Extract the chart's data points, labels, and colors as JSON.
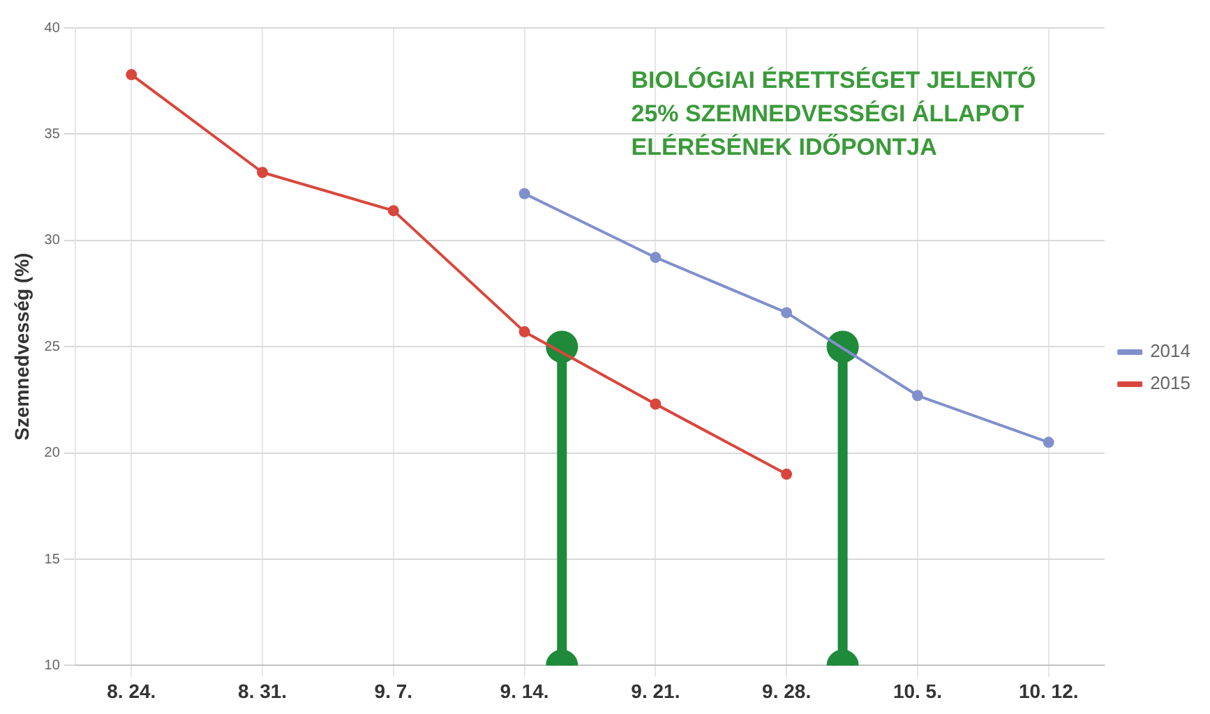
{
  "chart_data": {
    "type": "line",
    "ylabel": "Szemnedvesség (%)",
    "xlim": [
      "--08-21",
      "--10-15"
    ],
    "xticks": [
      {
        "value": "--08-24",
        "label": "8. 24."
      },
      {
        "value": "--08-31",
        "label": "8. 31."
      },
      {
        "value": "--09-07",
        "label": "9. 7."
      },
      {
        "value": "--09-14",
        "label": "9. 14."
      },
      {
        "value": "--09-21",
        "label": "9. 21."
      },
      {
        "value": "--09-28",
        "label": "9. 28."
      },
      {
        "value": "--10-05",
        "label": "10. 5."
      },
      {
        "value": "--10-12",
        "label": "10. 12."
      }
    ],
    "ylim": [
      10,
      40
    ],
    "yticks": [
      10,
      15,
      20,
      25,
      30,
      35,
      40
    ],
    "series": [
      {
        "name": "2014",
        "color": "#8090cc",
        "x": [
          "--09-14",
          "--09-21",
          "--09-28",
          "--10-05",
          "--10-12"
        ],
        "values": [
          32.2,
          29.2,
          26.6,
          22.7,
          20.5
        ]
      },
      {
        "name": "2015",
        "color": "#d9463c",
        "x": [
          "--08-24",
          "--08-31",
          "--09-07",
          "--09-14",
          "--09-21",
          "--09-28"
        ],
        "values": [
          37.8,
          33.2,
          31.4,
          25.7,
          22.3,
          19.0
        ]
      },
      {
        "color": "#1e8a3a",
        "x": [
          "--09-16",
          "--09-16"
        ],
        "values": [
          10,
          25
        ]
      },
      {
        "color": "#1e8a3a",
        "x": [
          "--10-01",
          "--10-01"
        ],
        "values": [
          10,
          25
        ]
      }
    ],
    "annotations": [
      "BIOLÓGIAI ÉRETTSÉGET JELENTŐ\n25% SZEMNEDVESSÉGI ÁLLAPOT\nELÉRÉSÉNEK IDŐPONTJA"
    ],
    "grid": true,
    "legend": "right",
    "marker": "circle",
    "line_style": "solid"
  }
}
